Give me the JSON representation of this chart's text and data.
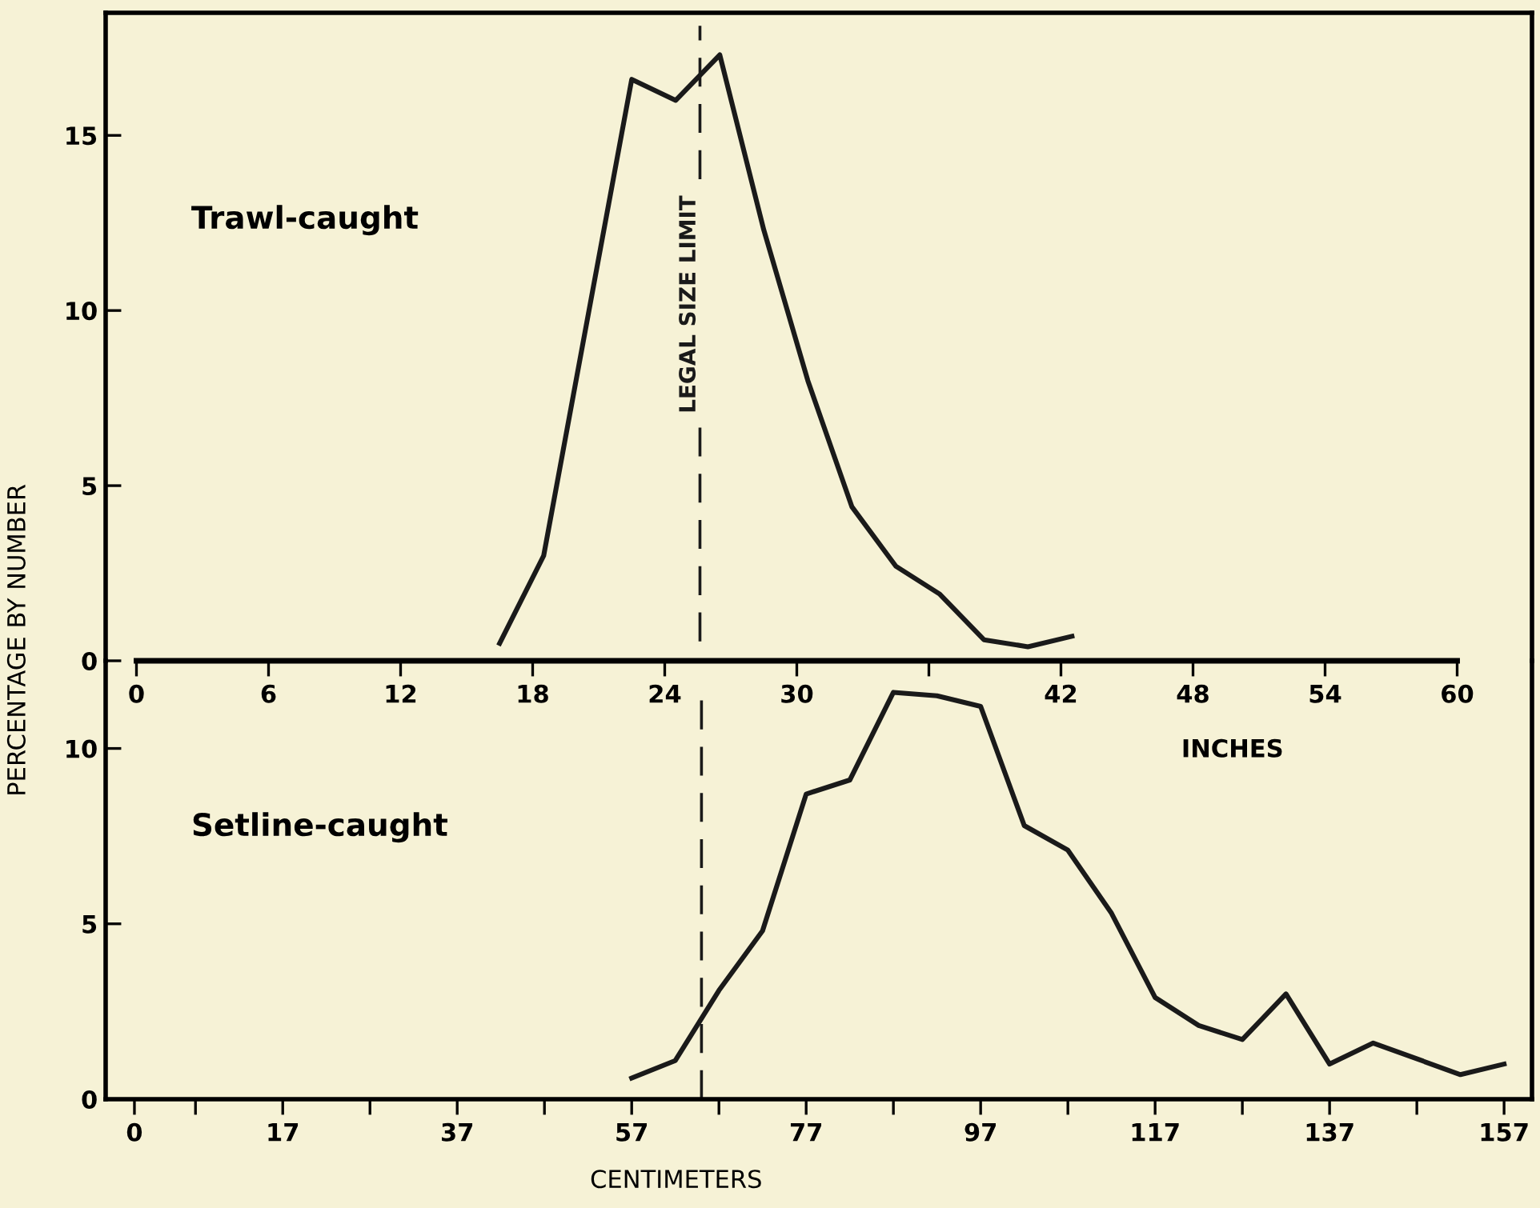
{
  "chart_data": [
    {
      "type": "line",
      "ylabel": "PERCENTAGE BY NUMBER",
      "xlabel": "INCHES",
      "annotations": [
        "Trawl-caught"
      ],
      "x": [
        16.5,
        18.5,
        22.5,
        24.5,
        26.5,
        28.5,
        30.5,
        32.5,
        34.5,
        36.5,
        38.5,
        40.5,
        42.5
      ],
      "series": [
        {
          "color": "#1a1a1a",
          "values": [
            0.5,
            3.0,
            16.6,
            16.0,
            17.3,
            12.3,
            8.0,
            4.4,
            2.7,
            1.9,
            0.6,
            0.4,
            0.7
          ]
        }
      ],
      "xlim": [
        -1.4,
        63.4
      ],
      "ylim": [
        0,
        18.5
      ],
      "xticks": [
        0,
        6,
        12,
        18,
        24,
        30,
        {
          "value": 36,
          "label": null
        },
        42,
        48,
        54,
        60
      ],
      "yticks": [
        0,
        5,
        10,
        15
      ],
      "ref_lines": [
        {
          "axis": "x",
          "value": 25.6,
          "label": "LEGAL SIZE LIMIT",
          "color": "#1a1a1a",
          "line_style": "dashed"
        }
      ],
      "grid": false,
      "legend": false,
      "marker": "none",
      "line_style": "solid"
    },
    {
      "type": "line",
      "xlabel": "CENTIMETERS",
      "annotations": [
        "Setline-caught"
      ],
      "x": [
        57,
        62,
        67,
        72,
        77,
        82,
        87,
        92,
        97,
        102,
        107,
        112,
        117,
        122,
        127,
        132,
        137,
        142,
        152,
        157
      ],
      "series": [
        {
          "color": "#1a1a1a",
          "values": [
            0.6,
            1.1,
            3.1,
            4.8,
            8.7,
            9.1,
            11.6,
            11.5,
            11.2,
            7.8,
            7.1,
            5.3,
            2.9,
            2.1,
            1.7,
            3.0,
            1.0,
            1.6,
            0.7,
            1.0
          ]
        }
      ],
      "xlim": [
        -3.3,
        160.2
      ],
      "ylim": [
        0,
        12.5
      ],
      "xticks": [
        0,
        {
          "value": 7,
          "label": null
        },
        17,
        {
          "value": 27,
          "label": null
        },
        37,
        {
          "value": 47,
          "label": null
        },
        57,
        {
          "value": 67,
          "label": null
        },
        77,
        {
          "value": 87,
          "label": null
        },
        97,
        {
          "value": 107,
          "label": null
        },
        117,
        {
          "value": 127,
          "label": null
        },
        137,
        {
          "value": 147,
          "label": null
        },
        157
      ],
      "yticks": [
        0,
        5,
        10
      ],
      "ref_lines": [
        {
          "axis": "x",
          "value": 65,
          "color": "#1a1a1a",
          "line_style": "dashed"
        }
      ],
      "grid": false,
      "legend": false,
      "marker": "none",
      "line_style": "solid"
    }
  ]
}
